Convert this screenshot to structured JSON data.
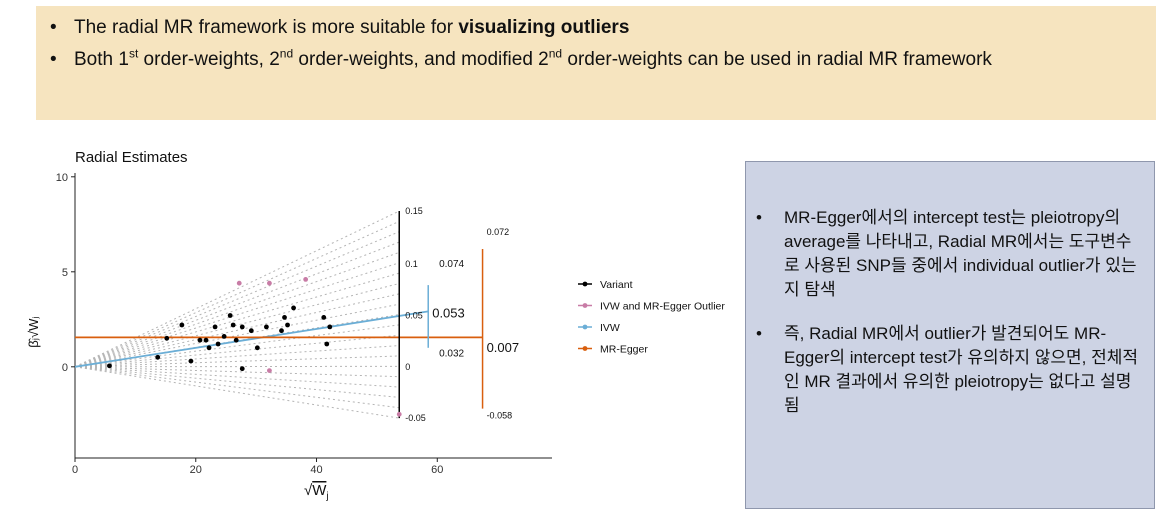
{
  "top_box": {
    "bullet1": {
      "dot": "•",
      "text_before": "The radial MR framework is more suitable for ",
      "text_bold": "visualizing outliers"
    },
    "bullet2": {
      "dot": "•",
      "p1": "Both 1",
      "s1": "st",
      "p2": " order-weights, 2",
      "s2": "nd",
      "p3": " order-weights, and modified 2",
      "s3": "nd",
      "p4": " order-weights can be used in radial MR framework"
    }
  },
  "right_box": {
    "items": [
      {
        "dot": "•",
        "text": "MR-Egger에서의 intercept test는 pleiotropy의 average를 나타내고, Radial MR에서는 도구변수로 사용된 SNP들 중에서 individual outlier가 있는지 탐색"
      },
      {
        "dot": "•",
        "text": "즉, Radial MR에서 outlier가 발견되어도 MR-Egger의 intercept test가 유의하지 않으면, 전체적인 MR 결과에서 유의한 pleiotropy는 없다고 설명됨"
      }
    ]
  },
  "chart_data": {
    "type": "scatter",
    "title": "Radial Estimates",
    "xlabel": "√W_j",
    "ylabel": "β̂_j√W_j",
    "xlim": [
      0,
      79
    ],
    "ylim": [
      -4.8,
      10.2
    ],
    "xticks": [
      0,
      20,
      40,
      60
    ],
    "yticks": [
      0,
      5,
      10
    ],
    "grid": false,
    "legend_position": "right",
    "series": [
      {
        "name": "Variant",
        "color": "#000000",
        "marker": "circle",
        "x": [
          5.7,
          13.7,
          15.2,
          17.7,
          19.2,
          20.7,
          21.7,
          22.2,
          23.2,
          23.7,
          24.7,
          25.7,
          26.2,
          26.7,
          27.7,
          27.7,
          29.2,
          30.2,
          31.7,
          34.2,
          34.7,
          35.2,
          36.2,
          41.2,
          41.7,
          42.2
        ],
        "y": [
          0.05,
          0.5,
          1.5,
          2.2,
          0.3,
          1.4,
          1.4,
          1.0,
          2.1,
          1.2,
          1.6,
          2.7,
          2.2,
          1.4,
          2.1,
          -0.1,
          1.9,
          1.0,
          2.1,
          1.9,
          2.6,
          2.2,
          3.1,
          2.6,
          1.2,
          2.1
        ]
      },
      {
        "name": "IVW and MR-Egger Outlier",
        "color": "#c87ca6",
        "marker": "circle",
        "x": [
          27.2,
          32.2,
          38.2,
          32.2,
          53.7
        ],
        "y": [
          4.4,
          4.4,
          4.6,
          -0.2,
          -2.5
        ]
      },
      {
        "name": "IVW",
        "color": "#6baed6",
        "line": {
          "intercept": 0,
          "slope": 0.053,
          "x_end": 58.5
        }
      },
      {
        "name": "MR-Egger",
        "color": "#d95f0e",
        "line": {
          "intercept": 1.55,
          "slope": 0.007,
          "x_end": 67.5
        }
      }
    ],
    "scale_arcs": [
      {
        "x": 53.7,
        "labels": [
          {
            "text": "0.15",
            "y": 8.2
          },
          {
            "text": "0.1",
            "y": 5.4
          },
          {
            "text": "0.05",
            "y": 2.7
          },
          {
            "text": "0",
            "y": 0.0
          },
          {
            "text": "-0.05",
            "y": -2.7
          }
        ]
      },
      {
        "x": 58.5,
        "value_label": "0.053",
        "y_from": 1.0,
        "y_to": 4.3
      },
      {
        "x": 67.5,
        "value_label": "0.007",
        "y_from": -2.2,
        "y_to": 6.2,
        "top_label": "0.072",
        "bottom_label": "-0.058"
      }
    ],
    "annotations": [
      {
        "text": "0.074",
        "x": 60.3,
        "y": 5.4
      },
      {
        "text": "0.032",
        "x": 60.3,
        "y": 0.7
      }
    ]
  }
}
